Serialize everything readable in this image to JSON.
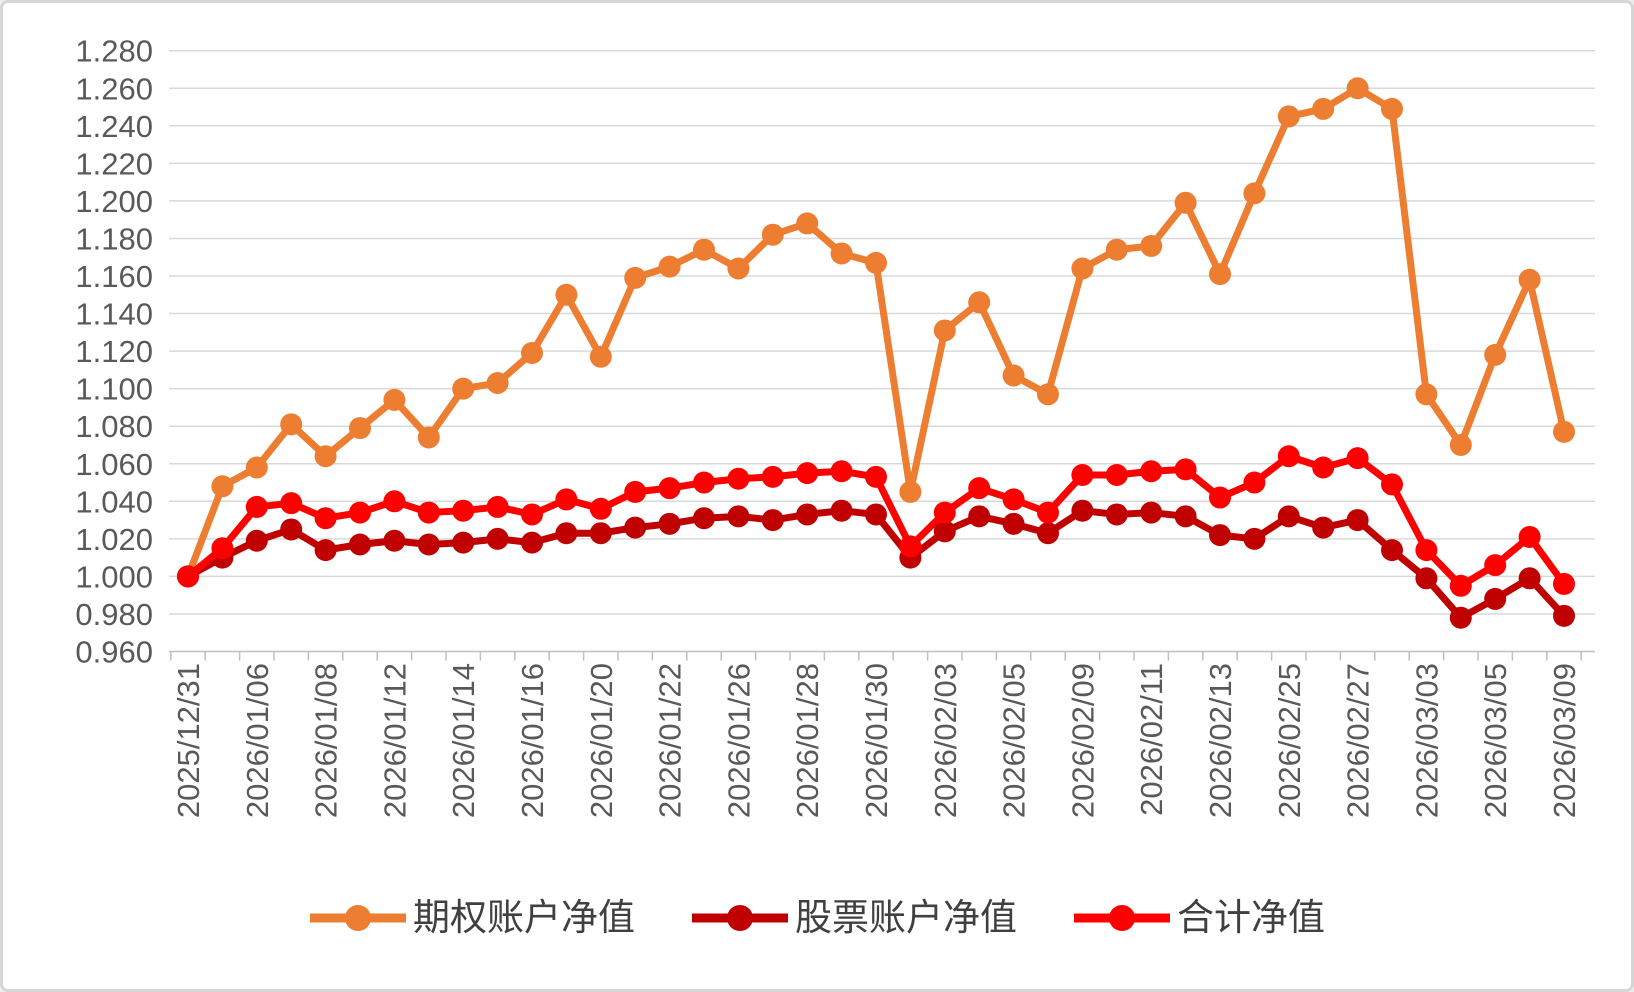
{
  "chart_data": {
    "type": "line",
    "title": "",
    "xlabel": "",
    "ylabel": "",
    "grid": true,
    "legend_position": "bottom",
    "background": "#FFFFFF",
    "gridline_color": "#D9D9D9",
    "axis_color": "#BFBFBF",
    "tick_label_color": "#595959",
    "legend_text_color": "#404040",
    "x_label_interval": 2,
    "x_tick_labels": [
      "2025/12/31",
      "2026/01/06",
      "2026/01/08",
      "2026/01/12",
      "2026/01/14",
      "2026/01/16",
      "2026/01/20",
      "2026/01/22",
      "2026/01/26",
      "2026/01/28",
      "2026/01/30",
      "2026/02/03",
      "2026/02/05",
      "2026/02/09",
      "2026/02/11",
      "2026/02/13",
      "2026/02/25",
      "2026/02/27",
      "2026/03/03",
      "2026/03/05",
      "2026/03/09"
    ],
    "categories": [
      "2025/12/31",
      "",
      "2026/01/06",
      "",
      "2026/01/08",
      "",
      "2026/01/12",
      "",
      "2026/01/14",
      "",
      "2026/01/16",
      "",
      "2026/01/20",
      "",
      "2026/01/22",
      "",
      "2026/01/26",
      "",
      "2026/01/28",
      "",
      "2026/01/30",
      "",
      "2026/02/03",
      "",
      "2026/02/05",
      "",
      "2026/02/09",
      "",
      "2026/02/11",
      "",
      "2026/02/13",
      "",
      "2026/02/25",
      "",
      "2026/02/27",
      "",
      "2026/03/03",
      "",
      "2026/03/05",
      "",
      "2026/03/09"
    ],
    "y_axis": {
      "min": 0.96,
      "max": 1.28,
      "step": 0.02,
      "tick_labels": [
        "0.960",
        "0.980",
        "1.000",
        "1.020",
        "1.040",
        "1.060",
        "1.080",
        "1.100",
        "1.120",
        "1.140",
        "1.160",
        "1.180",
        "1.200",
        "1.220",
        "1.240",
        "1.260",
        "1.280"
      ]
    },
    "series": [
      {
        "name": "期权账户净值",
        "color": "#ED7D31",
        "values": [
          1.0,
          1.048,
          1.058,
          1.081,
          1.064,
          1.079,
          1.094,
          1.074,
          1.1,
          1.103,
          1.119,
          1.15,
          1.117,
          1.159,
          1.165,
          1.174,
          1.164,
          1.182,
          1.188,
          1.172,
          1.167,
          1.045,
          1.131,
          1.146,
          1.107,
          1.097,
          1.164,
          1.174,
          1.176,
          1.199,
          1.161,
          1.204,
          1.245,
          1.249,
          1.26,
          1.249,
          1.097,
          1.07,
          1.118,
          1.158,
          1.077
        ]
      },
      {
        "name": "股票账户净值",
        "color": "#C00000",
        "values": [
          1.0,
          1.01,
          1.019,
          1.025,
          1.014,
          1.017,
          1.019,
          1.017,
          1.018,
          1.02,
          1.018,
          1.023,
          1.023,
          1.026,
          1.028,
          1.031,
          1.032,
          1.03,
          1.033,
          1.035,
          1.033,
          1.01,
          1.024,
          1.032,
          1.028,
          1.023,
          1.035,
          1.033,
          1.034,
          1.032,
          1.022,
          1.02,
          1.032,
          1.026,
          1.03,
          1.014,
          0.999,
          0.978,
          0.988,
          0.999,
          0.979
        ]
      },
      {
        "name": "合计净值",
        "color": "#FF0000",
        "values": [
          1.0,
          1.015,
          1.037,
          1.039,
          1.031,
          1.034,
          1.04,
          1.034,
          1.035,
          1.037,
          1.033,
          1.041,
          1.036,
          1.045,
          1.047,
          1.05,
          1.052,
          1.053,
          1.055,
          1.056,
          1.053,
          1.016,
          1.034,
          1.047,
          1.041,
          1.034,
          1.054,
          1.054,
          1.056,
          1.057,
          1.042,
          1.05,
          1.064,
          1.058,
          1.063,
          1.049,
          1.014,
          0.995,
          1.006,
          1.021,
          0.996
        ]
      }
    ]
  }
}
